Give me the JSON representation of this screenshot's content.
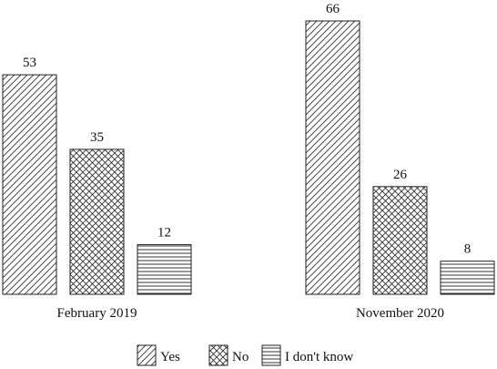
{
  "chart_data": {
    "type": "bar",
    "categories": [
      "February 2019",
      "November 2020"
    ],
    "series": [
      {
        "name": "Yes",
        "values": [
          53,
          66
        ],
        "pattern": "diagonal"
      },
      {
        "name": "No",
        "values": [
          35,
          26
        ],
        "pattern": "crosshatch"
      },
      {
        "name": "I don't know",
        "values": [
          12,
          8
        ],
        "pattern": "horizontal"
      }
    ],
    "title": "",
    "xlabel": "",
    "ylabel": "",
    "ylim": [
      0,
      70
    ],
    "grid": false,
    "legend_position": "bottom"
  }
}
